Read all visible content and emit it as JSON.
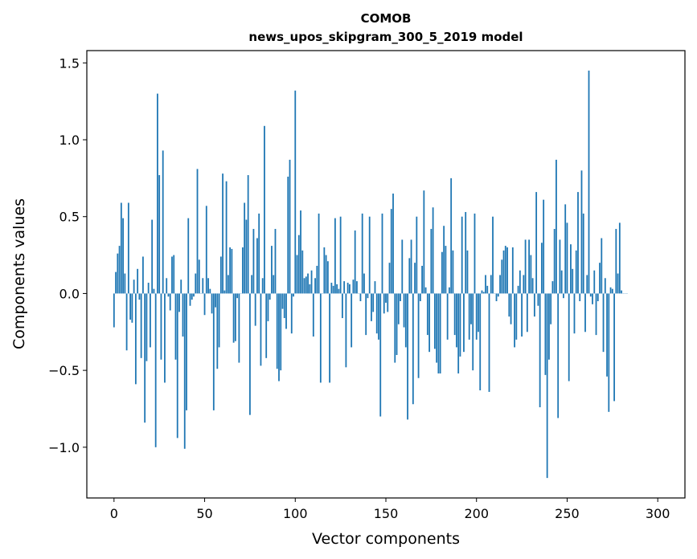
{
  "chart_data": {
    "type": "bar",
    "title": "СОМОВ",
    "subtitle": "news_upos_skipgram_300_5_2019 model",
    "xlabel": "Vector components",
    "ylabel": "Components values",
    "xlim": [
      -15,
      315
    ],
    "ylim": [
      -1.33,
      1.58
    ],
    "xticks": [
      0,
      50,
      100,
      150,
      200,
      250,
      300
    ],
    "xtick_labels": [
      "0",
      "50",
      "100",
      "150",
      "200",
      "250",
      "300"
    ],
    "yticks": [
      -1.0,
      -0.5,
      0.0,
      0.5,
      1.0,
      1.5
    ],
    "ytick_labels": [
      "−1.0",
      "−0.5",
      "0.0",
      "0.5",
      "1.0",
      "1.5"
    ],
    "color": "#1f77b4",
    "values": [
      -0.22,
      0.14,
      0.26,
      0.31,
      0.59,
      0.49,
      0.13,
      -0.37,
      0.59,
      -0.17,
      -0.19,
      0.09,
      -0.59,
      0.16,
      -0.04,
      -0.42,
      0.24,
      -0.84,
      -0.44,
      0.07,
      -0.35,
      0.48,
      0.03,
      -1.0,
      1.3,
      0.77,
      -0.43,
      0.93,
      -0.58,
      0.1,
      -0.02,
      -0.11,
      0.24,
      0.25,
      -0.43,
      -0.94,
      -0.12,
      0.09,
      -0.28,
      -1.01,
      -0.76,
      0.49,
      -0.08,
      -0.04,
      -0.02,
      0.13,
      0.81,
      0.22,
      0.0,
      0.1,
      -0.14,
      0.57,
      0.1,
      0.03,
      -0.13,
      -0.76,
      -0.09,
      -0.49,
      -0.35,
      0.24,
      0.78,
      0.02,
      0.73,
      0.12,
      0.3,
      0.29,
      -0.32,
      -0.31,
      -0.03,
      -0.45,
      0.0,
      0.3,
      0.59,
      0.48,
      0.77,
      -0.79,
      0.12,
      0.42,
      -0.21,
      0.36,
      0.52,
      -0.47,
      0.1,
      1.09,
      -0.42,
      -0.18,
      -0.04,
      0.31,
      0.12,
      0.42,
      -0.49,
      -0.57,
      -0.5,
      -0.1,
      -0.16,
      -0.23,
      0.76,
      0.87,
      -0.26,
      -0.02,
      1.32,
      0.25,
      0.38,
      0.54,
      0.28,
      0.1,
      0.11,
      0.13,
      0.06,
      0.15,
      -0.28,
      0.1,
      0.18,
      0.52,
      -0.58,
      0.0,
      0.3,
      0.25,
      0.21,
      -0.58,
      0.07,
      0.05,
      0.49,
      0.06,
      0.03,
      0.5,
      -0.16,
      0.08,
      -0.48,
      0.07,
      0.06,
      -0.35,
      0.09,
      0.41,
      0.08,
      0.0,
      -0.05,
      0.52,
      0.13,
      -0.27,
      -0.03,
      0.5,
      -0.18,
      -0.12,
      0.08,
      -0.26,
      -0.3,
      -0.8,
      0.52,
      -0.13,
      -0.06,
      -0.12,
      0.2,
      0.55,
      0.65,
      -0.45,
      -0.4,
      -0.2,
      -0.05,
      0.35,
      -0.22,
      -0.35,
      -0.82,
      0.23,
      0.35,
      -0.72,
      0.2,
      0.5,
      -0.55,
      -0.05,
      0.18,
      0.67,
      0.04,
      -0.27,
      -0.38,
      0.42,
      0.56,
      -0.36,
      -0.45,
      -0.52,
      -0.52,
      0.27,
      0.44,
      0.31,
      -0.3,
      0.04,
      0.75,
      0.28,
      -0.27,
      -0.35,
      -0.52,
      -0.41,
      0.5,
      -0.38,
      0.53,
      0.28,
      -0.3,
      -0.2,
      -0.5,
      0.52,
      -0.3,
      -0.25,
      -0.63,
      0.02,
      0.01,
      0.12,
      0.05,
      -0.64,
      0.12,
      0.5,
      0.0,
      -0.05,
      -0.02,
      0.12,
      0.22,
      0.28,
      0.31,
      0.3,
      -0.15,
      -0.2,
      0.3,
      -0.35,
      -0.3,
      0.05,
      0.15,
      -0.28,
      0.12,
      0.35,
      -0.25,
      0.35,
      0.25,
      0.1,
      -0.15,
      0.66,
      -0.08,
      -0.74,
      0.33,
      0.61,
      -0.53,
      -1.2,
      -0.43,
      -0.2,
      0.08,
      0.42,
      0.87,
      -0.81,
      0.35,
      0.15,
      -0.03,
      0.58,
      0.46,
      -0.57,
      0.32,
      0.16,
      -0.26,
      0.28,
      0.66,
      -0.05,
      0.8,
      0.52,
      -0.25,
      0.12,
      1.45,
      -0.02,
      -0.07,
      0.15,
      -0.27,
      -0.05,
      0.2,
      0.36,
      -0.38,
      0.1,
      -0.54,
      -0.77,
      0.04,
      0.03,
      -0.7,
      0.42,
      0.13,
      0.46,
      0.02,
      0.0,
      0.0,
      0.0
    ]
  }
}
